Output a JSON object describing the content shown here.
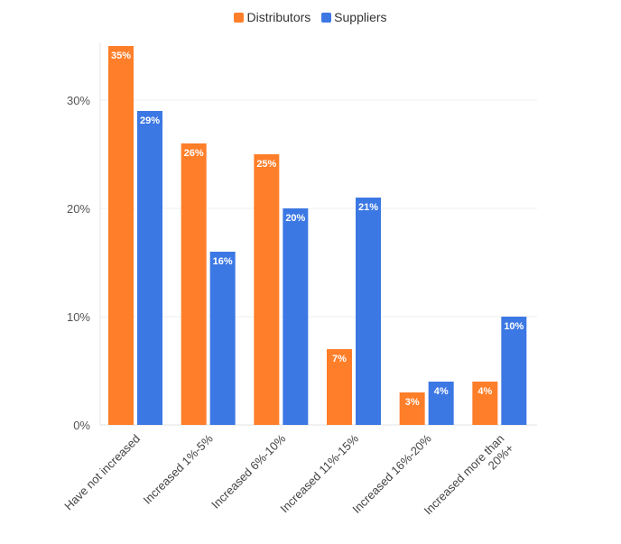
{
  "chart_data": {
    "type": "bar",
    "categories": [
      [
        "Have not increased"
      ],
      [
        "Increased 1%-5%"
      ],
      [
        "Increased 6%-10%"
      ],
      [
        "Increased 11%-15%"
      ],
      [
        "Increased 16%-20%"
      ],
      [
        "Increased more than",
        "20%+"
      ]
    ],
    "series": [
      {
        "name": "Distributors",
        "color": "#FF7E29",
        "values": [
          35,
          26,
          25,
          7,
          3,
          4
        ]
      },
      {
        "name": "Suppliers",
        "color": "#3C78E4",
        "values": [
          29,
          16,
          20,
          21,
          4,
          10
        ]
      }
    ],
    "ylim": [
      0,
      35
    ],
    "yticks": [
      0,
      10,
      20,
      30
    ],
    "ytick_suffix": "%",
    "value_suffix": "%",
    "legend": "top-center",
    "grid": true
  }
}
